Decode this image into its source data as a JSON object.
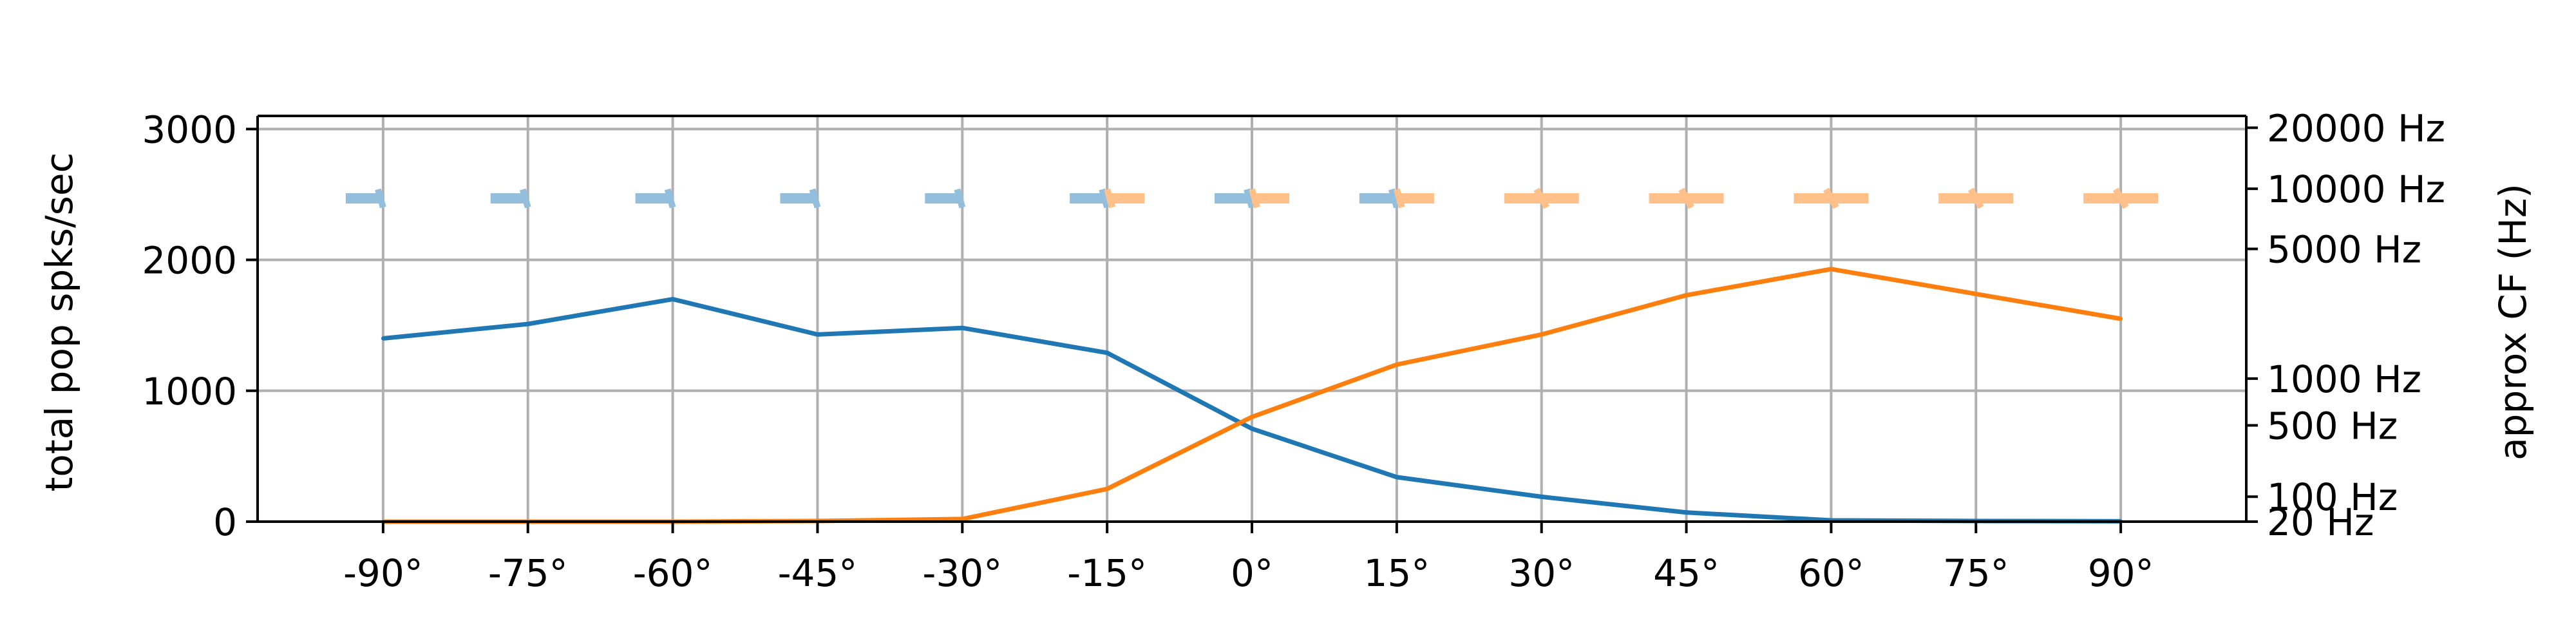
{
  "chart_data": {
    "type": "line",
    "x": [
      -90,
      -75,
      -60,
      -45,
      -30,
      -15,
      0,
      15,
      30,
      45,
      60,
      75,
      90
    ],
    "x_tick_labels": [
      "-90°",
      "-75°",
      "-60°",
      "-45°",
      "-30°",
      "-15°",
      "0°",
      "15°",
      "30°",
      "45°",
      "60°",
      "75°",
      "90°"
    ],
    "xlim": [
      -103,
      103
    ],
    "ylabel": "total pop spks/sec",
    "ylim": [
      0,
      3100
    ],
    "y_ticks": [
      0,
      1000,
      2000,
      3000
    ],
    "y_tick_labels": [
      "0",
      "1000",
      "2000",
      "3000"
    ],
    "right_axis": {
      "ylabel": "approx CF (Hz)",
      "scale": "erb",
      "tick_values": [
        20,
        100,
        500,
        1000,
        5000,
        10000,
        20000
      ],
      "tick_labels": [
        "20 Hz",
        "100 Hz",
        "500 Hz",
        "1000 Hz",
        "5000 Hz",
        "10000 Hz",
        "20000 Hz"
      ]
    },
    "grid": true,
    "series": [
      {
        "color": "#1f77b4",
        "values": [
          1400,
          1510,
          1700,
          1430,
          1480,
          1290,
          710,
          340,
          190,
          70,
          10,
          5,
          3
        ]
      },
      {
        "color": "#ff7f0e",
        "values": [
          0,
          0,
          0,
          5,
          20,
          250,
          800,
          1200,
          1430,
          1730,
          1930,
          1740,
          1550
        ]
      }
    ],
    "markers": [
      {
        "x": -90,
        "color": "#93bedc",
        "side": "left"
      },
      {
        "x": -75,
        "color": "#93bedc",
        "side": "left"
      },
      {
        "x": -60,
        "color": "#93bedc",
        "side": "left"
      },
      {
        "x": -45,
        "color": "#93bedc",
        "side": "left"
      },
      {
        "x": -30,
        "color": "#93bedc",
        "side": "left"
      },
      {
        "x": -15,
        "color": "#93bedc",
        "side": "left"
      },
      {
        "x": -15,
        "color": "#ffc08a",
        "side": "right"
      },
      {
        "x": 0,
        "color": "#93bedc",
        "side": "left"
      },
      {
        "x": 0,
        "color": "#ffc08a",
        "side": "right"
      },
      {
        "x": 15,
        "color": "#93bedc",
        "side": "left"
      },
      {
        "x": 15,
        "color": "#ffc08a",
        "side": "right"
      },
      {
        "x": 30,
        "color": "#ffc08a",
        "side": "both"
      },
      {
        "x": 45,
        "color": "#ffc08a",
        "side": "both"
      },
      {
        "x": 60,
        "color": "#ffc08a",
        "side": "both"
      },
      {
        "x": 75,
        "color": "#ffc08a",
        "side": "both"
      },
      {
        "x": 90,
        "color": "#ffc08a",
        "side": "both"
      }
    ],
    "marker_level": 2470
  }
}
